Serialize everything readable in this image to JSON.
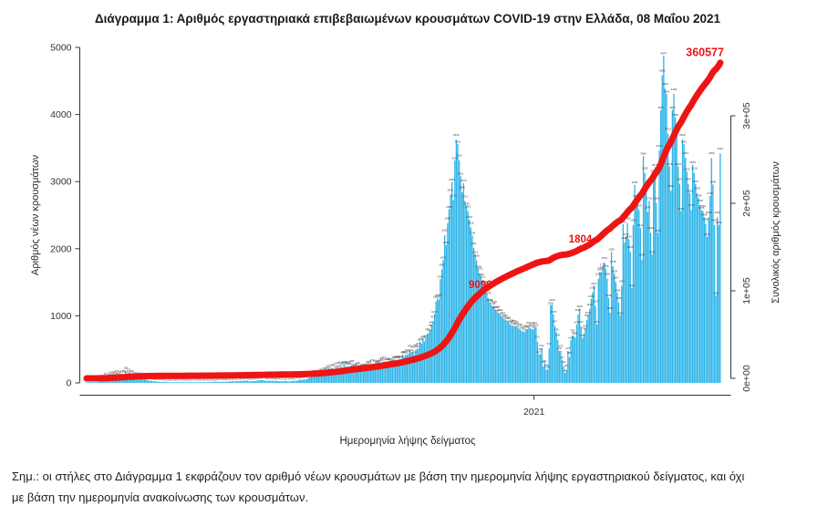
{
  "title": "Διάγραμμα 1: Αριθμός εργαστηριακά επιβεβαιωμένων κρουσμάτων COVID-19 στην Ελλάδα, 08 Μαΐου 2021",
  "note": {
    "line1": "Σημ.: οι στήλες στο Διάγραμμα 1 εκφράζουν τον αριθμό νέων κρουσμάτων με βάση την ημερομηνία λήψης εργαστηριακού δείγματος, και όχι",
    "line2": "με βάση την ημερομηνία ανακοίνωσης των κρουσμάτων."
  },
  "chart_data": {
    "type": "bar",
    "title": "",
    "xlabel": "Ημερομηνία λήψης δείγματος",
    "ylabel_left": "Αριθμός νέων κρουσμάτων",
    "ylabel_right": "Συνολικός αριθμός κρουσμάτων",
    "left_axis_ticks": [
      0,
      1000,
      2000,
      3000,
      4000,
      5000
    ],
    "left_axis_range": [
      0,
      5000
    ],
    "right_axis_ticks": [
      "0e+00",
      "1e+05",
      "2e+05",
      "3e+05"
    ],
    "right_axis_range": [
      0,
      300000
    ],
    "x_tick_labels": [
      "2021"
    ],
    "grid": false,
    "legend": "none",
    "bar_color": "#2eb5e8",
    "line_color": "#ee1414",
    "bar_label_color": "#3a3a3a",
    "axis_color": "#333333",
    "days_total": 438,
    "final_cumulative": 360577,
    "annotations": [
      {
        "text": "9096",
        "day": 272,
        "cum": 103000,
        "anchor": "middle",
        "size": 11.5
      },
      {
        "text": "1804",
        "day": 341,
        "cum": 155000,
        "anchor": "middle",
        "size": 11.5
      },
      {
        "text": "360577",
        "day": 440,
        "cum": 368000,
        "anchor": "end",
        "size": 12.5
      }
    ],
    "daily_new_cases_anchors": [
      [
        0,
        3
      ],
      [
        2,
        4
      ],
      [
        4,
        7
      ],
      [
        6,
        10
      ],
      [
        9,
        21
      ],
      [
        12,
        45
      ],
      [
        15,
        71
      ],
      [
        18,
        95
      ],
      [
        21,
        103
      ],
      [
        24,
        88
      ],
      [
        27,
        156
      ],
      [
        30,
        111
      ],
      [
        33,
        82
      ],
      [
        36,
        69
      ],
      [
        40,
        56
      ],
      [
        44,
        32
      ],
      [
        48,
        22
      ],
      [
        52,
        16
      ],
      [
        56,
        13
      ],
      [
        60,
        10
      ],
      [
        65,
        9
      ],
      [
        70,
        11
      ],
      [
        75,
        10
      ],
      [
        80,
        14
      ],
      [
        85,
        12
      ],
      [
        90,
        18
      ],
      [
        95,
        16
      ],
      [
        100,
        25
      ],
      [
        105,
        28
      ],
      [
        110,
        33
      ],
      [
        115,
        27
      ],
      [
        120,
        41
      ],
      [
        125,
        35
      ],
      [
        130,
        29
      ],
      [
        135,
        26
      ],
      [
        140,
        24
      ],
      [
        145,
        33
      ],
      [
        150,
        52
      ],
      [
        154,
        78
      ],
      [
        158,
        110
      ],
      [
        162,
        131
      ],
      [
        165,
        152
      ],
      [
        168,
        178
      ],
      [
        172,
        204
      ],
      [
        176,
        232
      ],
      [
        180,
        251
      ],
      [
        184,
        226
      ],
      [
        188,
        210
      ],
      [
        192,
        228
      ],
      [
        196,
        242
      ],
      [
        200,
        269
      ],
      [
        204,
        310
      ],
      [
        207,
        282
      ],
      [
        210,
        294
      ],
      [
        213,
        326
      ],
      [
        216,
        354
      ],
      [
        219,
        391
      ],
      [
        222,
        436
      ],
      [
        225,
        468
      ],
      [
        228,
        508
      ],
      [
        231,
        579
      ],
      [
        234,
        667
      ],
      [
        236,
        748
      ],
      [
        238,
        865
      ],
      [
        240,
        1027
      ],
      [
        242,
        1259
      ],
      [
        244,
        1547
      ],
      [
        245,
        1690
      ],
      [
        246,
        1832
      ],
      [
        248,
        2056
      ],
      [
        250,
        2588
      ],
      [
        251,
        2801
      ],
      [
        252,
        2996
      ],
      [
        254,
        3316
      ],
      [
        255,
        3626
      ],
      [
        256,
        3561
      ],
      [
        257,
        3316
      ],
      [
        258,
        3081
      ],
      [
        259,
        2841
      ],
      [
        260,
        2979
      ],
      [
        261,
        2711
      ],
      [
        262,
        2636
      ],
      [
        263,
        2561
      ],
      [
        264,
        2436
      ],
      [
        265,
        2316
      ],
      [
        266,
        2199
      ],
      [
        267,
        2011
      ],
      [
        268,
        1914
      ],
      [
        269,
        1826
      ],
      [
        270,
        1698
      ],
      [
        271,
        1632
      ],
      [
        272,
        1582
      ],
      [
        273,
        1512
      ],
      [
        274,
        1463
      ],
      [
        275,
        1432
      ],
      [
        276,
        1341
      ],
      [
        277,
        1266
      ],
      [
        278,
        1199
      ],
      [
        279,
        1161
      ],
      [
        280,
        1148
      ],
      [
        281,
        1136
      ],
      [
        282,
        1092
      ],
      [
        283,
        1066
      ],
      [
        284,
        1044
      ],
      [
        285,
        1016
      ],
      [
        286,
        992
      ],
      [
        287,
        974
      ],
      [
        288,
        958
      ],
      [
        289,
        941
      ],
      [
        290,
        930
      ],
      [
        291,
        904
      ],
      [
        292,
        878
      ],
      [
        293,
        858
      ],
      [
        294,
        852
      ],
      [
        295,
        850
      ],
      [
        296,
        849
      ],
      [
        297,
        831
      ],
      [
        298,
        812
      ],
      [
        299,
        798
      ],
      [
        300,
        779
      ],
      [
        301,
        768
      ],
      [
        302,
        760
      ],
      [
        303,
        781
      ],
      [
        304,
        802
      ],
      [
        305,
        823
      ],
      [
        306,
        812
      ],
      [
        307,
        805
      ],
      [
        308,
        798
      ],
      [
        309,
        823
      ],
      [
        310,
        829
      ],
      [
        311,
        613
      ],
      [
        312,
        427
      ],
      [
        313,
        429
      ],
      [
        314,
        522
      ],
      [
        315,
        244
      ],
      [
        316,
        291
      ],
      [
        317,
        195
      ],
      [
        318,
        202
      ],
      [
        319,
        512
      ],
      [
        320,
        1156
      ],
      [
        321,
        1169
      ],
      [
        322,
        1026
      ],
      [
        323,
        847
      ],
      [
        324,
        758
      ],
      [
        325,
        640
      ],
      [
        326,
        478
      ],
      [
        327,
        479
      ],
      [
        328,
        347
      ],
      [
        329,
        244
      ],
      [
        330,
        148
      ],
      [
        331,
        186
      ],
      [
        332,
        478
      ],
      [
        333,
        380
      ],
      [
        334,
        640
      ],
      [
        335,
        708
      ],
      [
        336,
        702
      ],
      [
        337,
        673
      ],
      [
        338,
        870
      ],
      [
        339,
        1017
      ],
      [
        340,
        1109
      ],
      [
        341,
        842
      ],
      [
        342,
        670
      ],
      [
        343,
        736
      ],
      [
        344,
        811
      ],
      [
        345,
        935
      ],
      [
        346,
        1011
      ],
      [
        347,
        1101
      ],
      [
        348,
        1255
      ],
      [
        349,
        1351
      ],
      [
        350,
        1447
      ],
      [
        351,
        1147
      ],
      [
        352,
        873
      ],
      [
        353,
        1553
      ],
      [
        354,
        1653
      ],
      [
        355,
        1645
      ],
      [
        356,
        1723
      ],
      [
        357,
        1794
      ],
      [
        358,
        1706
      ],
      [
        359,
        1552
      ],
      [
        360,
        1268
      ],
      [
        361,
        1046
      ],
      [
        362,
        1955
      ],
      [
        363,
        1738
      ],
      [
        364,
        1629
      ],
      [
        365,
        1502
      ],
      [
        366,
        1346
      ],
      [
        367,
        1196
      ],
      [
        368,
        1007
      ],
      [
        369,
        1447
      ],
      [
        370,
        2366
      ],
      [
        371,
        2092
      ],
      [
        372,
        2177
      ],
      [
        373,
        2380
      ],
      [
        374,
        2142
      ],
      [
        375,
        1955
      ],
      [
        376,
        1419
      ],
      [
        377,
        2354
      ],
      [
        378,
        2952
      ],
      [
        379,
        2715
      ],
      [
        380,
        2682
      ],
      [
        381,
        2575
      ],
      [
        382,
        2312
      ],
      [
        383,
        1836
      ],
      [
        384,
        3384
      ],
      [
        385,
        3128
      ],
      [
        386,
        2898
      ],
      [
        387,
        2547
      ],
      [
        388,
        2715
      ],
      [
        389,
        2236
      ],
      [
        390,
        1913
      ],
      [
        391,
        3088
      ],
      [
        392,
        3215
      ],
      [
        393,
        2682
      ],
      [
        394,
        2236
      ],
      [
        395,
        3465
      ],
      [
        396,
        4067
      ],
      [
        397,
        4586
      ],
      [
        398,
        4874
      ],
      [
        399,
        4386
      ],
      [
        400,
        4306
      ],
      [
        401,
        3713
      ],
      [
        402,
        3226
      ],
      [
        403,
        2862
      ],
      [
        404,
        4067
      ],
      [
        405,
        4306
      ],
      [
        406,
        3958
      ],
      [
        407,
        3713
      ],
      [
        408,
        3226
      ],
      [
        409,
        2967
      ],
      [
        410,
        2562
      ],
      [
        411,
        3626
      ],
      [
        412,
        3561
      ],
      [
        413,
        3354
      ],
      [
        414,
        3151
      ],
      [
        415,
        2967
      ],
      [
        416,
        2828
      ],
      [
        417,
        2576
      ],
      [
        418,
        3254
      ],
      [
        419,
        3128
      ],
      [
        420,
        2967
      ],
      [
        421,
        2828
      ],
      [
        422,
        2758
      ],
      [
        423,
        2648
      ],
      [
        424,
        2576
      ],
      [
        425,
        2562
      ],
      [
        426,
        2469
      ],
      [
        427,
        2366
      ],
      [
        428,
        2176
      ],
      [
        429,
        2469
      ],
      [
        430,
        2790
      ],
      [
        431,
        3350
      ],
      [
        432,
        2958
      ],
      [
        433,
        2354
      ],
      [
        434,
        1305
      ],
      [
        435,
        2469
      ],
      [
        436,
        2354
      ],
      [
        437,
        3421
      ]
    ]
  }
}
